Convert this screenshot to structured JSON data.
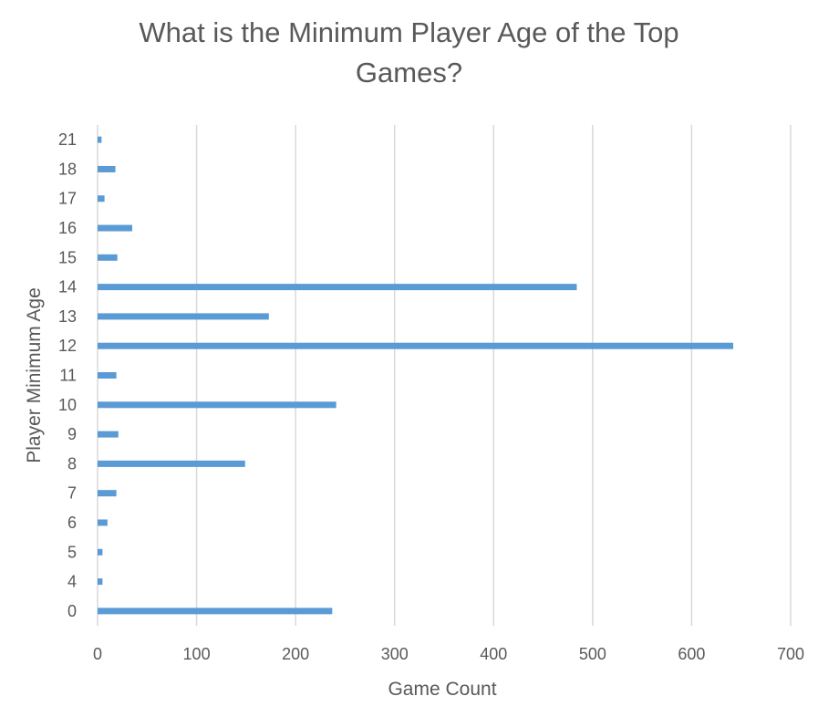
{
  "chart_data": {
    "type": "bar",
    "orientation": "horizontal",
    "title_lines": [
      "What is the Minimum Player Age of the Top",
      "Games?"
    ],
    "xlabel": "Game Count",
    "ylabel": "Player Minimum Age",
    "categories": [
      "0",
      "4",
      "5",
      "6",
      "7",
      "8",
      "9",
      "10",
      "11",
      "12",
      "13",
      "14",
      "15",
      "16",
      "17",
      "18",
      "21"
    ],
    "values": [
      237,
      5,
      5,
      10,
      19,
      149,
      21,
      241,
      19,
      642,
      173,
      484,
      20,
      35,
      7,
      18,
      4
    ],
    "xlim": [
      0,
      700
    ],
    "xticks": [
      "0",
      "100",
      "200",
      "300",
      "400",
      "500",
      "600",
      "700"
    ],
    "grid": "vertical",
    "bar_color": "#5B9BD5",
    "grid_color": "#D9D9D9",
    "legend": "none"
  }
}
